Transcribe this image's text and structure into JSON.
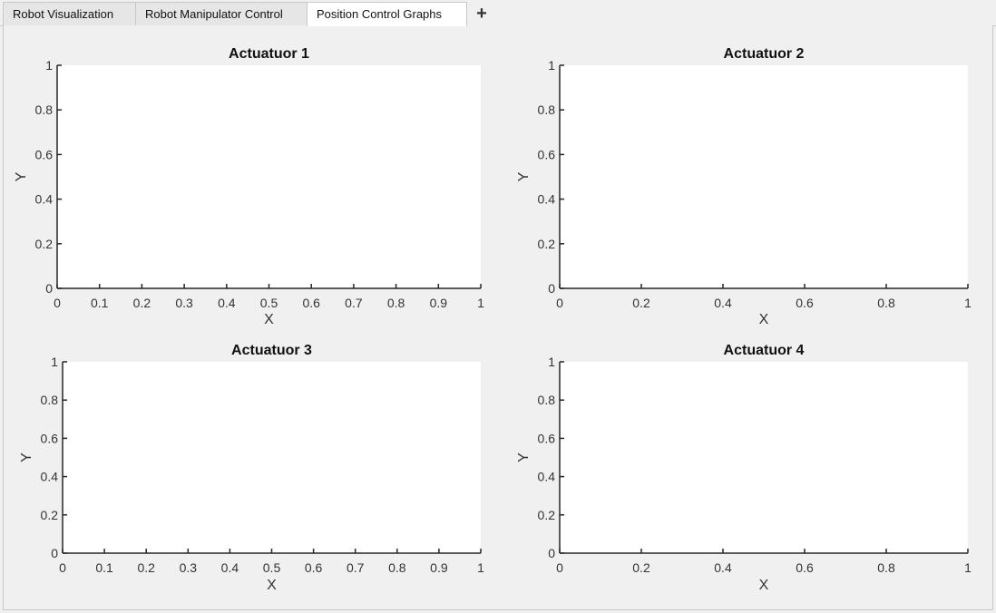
{
  "tabs": [
    {
      "label": "Robot Visualization",
      "active": false
    },
    {
      "label": "Robot Manipulator Control",
      "active": false
    },
    {
      "label": "Position Control Graphs",
      "active": true
    }
  ],
  "add_tab_icon": "plus-icon",
  "colors": {
    "plot_bg": "#ffffff",
    "axis": "#262626",
    "panel_bg": "#f0f0f0"
  },
  "chart_data": [
    {
      "type": "line",
      "title": "Actuatuor 1",
      "xlabel": "X",
      "ylabel": "Y",
      "xlim": [
        0,
        1
      ],
      "ylim": [
        0,
        1
      ],
      "xticks": [
        0,
        0.1,
        0.2,
        0.3,
        0.4,
        0.5,
        0.6,
        0.7,
        0.8,
        0.9,
        1
      ],
      "yticks": [
        0,
        0.2,
        0.4,
        0.6,
        0.8,
        1
      ],
      "series": []
    },
    {
      "type": "line",
      "title": "Actuatuor 2",
      "xlabel": "X",
      "ylabel": "Y",
      "xlim": [
        0,
        1
      ],
      "ylim": [
        0,
        1
      ],
      "xticks": [
        0,
        0.2,
        0.4,
        0.6,
        0.8,
        1
      ],
      "yticks": [
        0,
        0.2,
        0.4,
        0.6,
        0.8,
        1
      ],
      "series": []
    },
    {
      "type": "line",
      "title": "Actuatuor 3",
      "xlabel": "X",
      "ylabel": "Y",
      "xlim": [
        0,
        1
      ],
      "ylim": [
        0,
        1
      ],
      "xticks": [
        0,
        0.1,
        0.2,
        0.3,
        0.4,
        0.5,
        0.6,
        0.7,
        0.8,
        0.9,
        1
      ],
      "yticks": [
        0,
        0.2,
        0.4,
        0.6,
        0.8,
        1
      ],
      "series": []
    },
    {
      "type": "line",
      "title": "Actuatuor 4",
      "xlabel": "X",
      "ylabel": "Y",
      "xlim": [
        0,
        1
      ],
      "ylim": [
        0,
        1
      ],
      "xticks": [
        0,
        0.2,
        0.4,
        0.6,
        0.8,
        1
      ],
      "yticks": [
        0,
        0.2,
        0.4,
        0.6,
        0.8,
        1
      ],
      "series": []
    }
  ]
}
